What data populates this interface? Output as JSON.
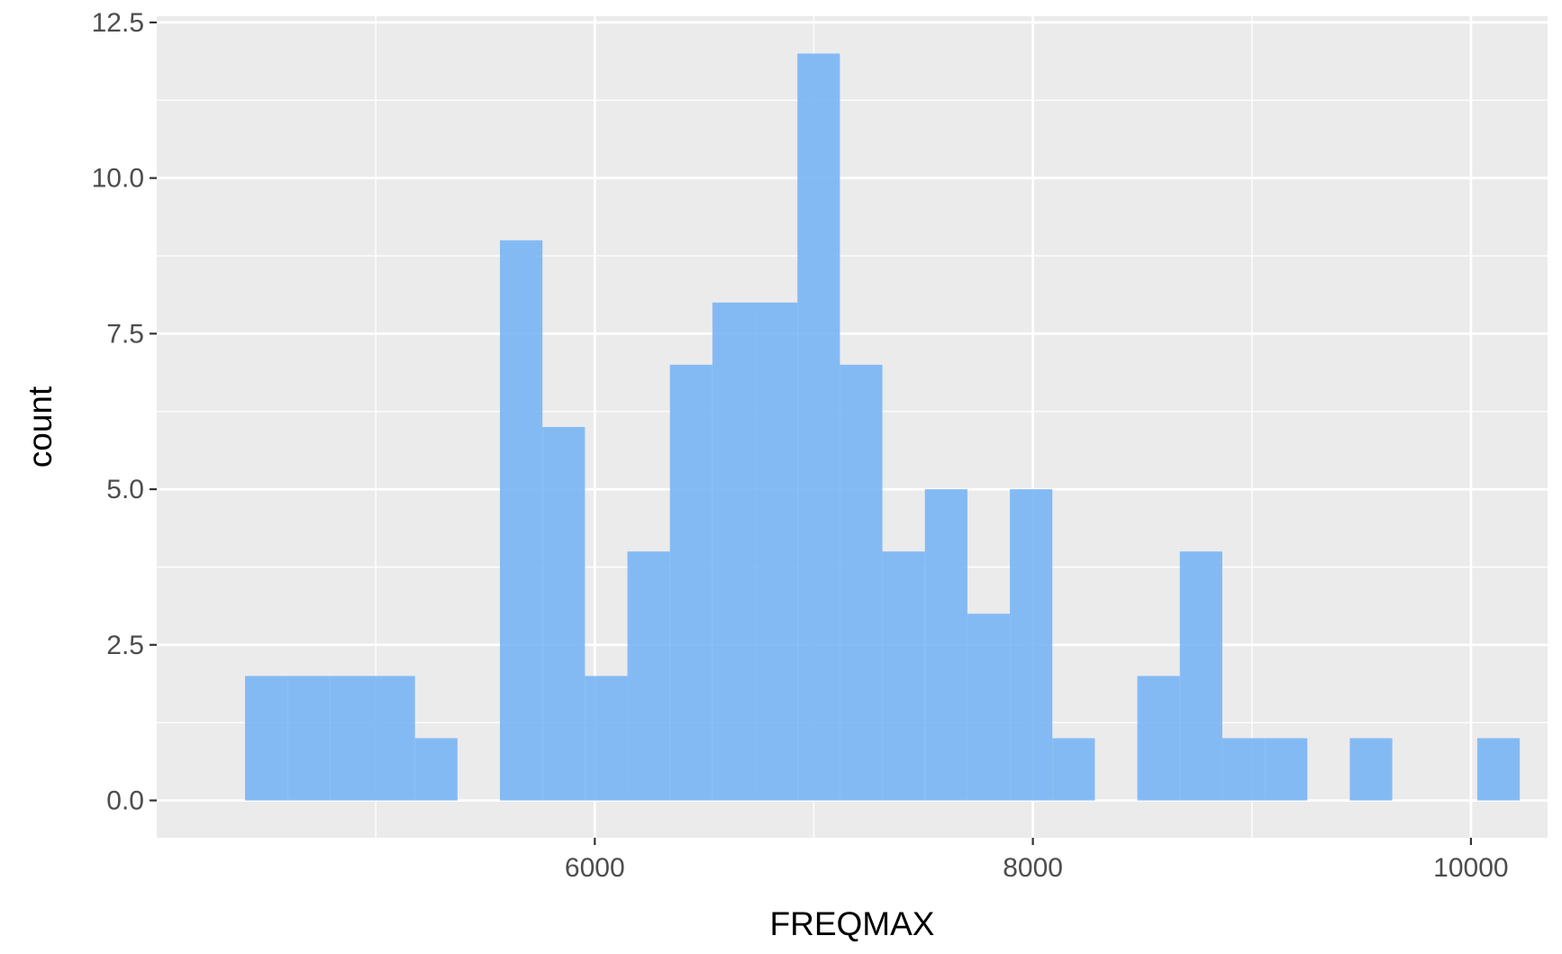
{
  "chart_data": {
    "type": "bar",
    "title": "",
    "xlabel": "FREQMAX",
    "ylabel": "count",
    "x_ticks": [
      6000,
      8000,
      10000
    ],
    "x_tick_labels": [
      "6000",
      "8000",
      "10000"
    ],
    "y_ticks": [
      0,
      2.5,
      5,
      7.5,
      10,
      12.5
    ],
    "y_tick_labels": [
      "0.0",
      "2.5",
      "5.0",
      "7.5",
      "10.0",
      "12.5"
    ],
    "xlim": [
      4000,
      10350
    ],
    "ylim": [
      -0.6,
      12.6
    ],
    "grid": true,
    "bin_width": 194,
    "bin_centers": [
      4500,
      4694,
      4888,
      5082,
      5276,
      5470,
      5664,
      5858,
      6052,
      6246,
      6440,
      6634,
      6828,
      7022,
      7216,
      7410,
      7604,
      7798,
      7992,
      8186,
      8380,
      8574,
      8768,
      8962,
      9156,
      9350,
      9544,
      9738,
      9932,
      10126
    ],
    "values": [
      2,
      2,
      2,
      2,
      1,
      0,
      9,
      6,
      2,
      4,
      7,
      8,
      8,
      12,
      7,
      4,
      5,
      3,
      5,
      1,
      0,
      2,
      4,
      1,
      1,
      0,
      1,
      0,
      0,
      1
    ],
    "colors": {
      "bar": "#75b3f5",
      "panel": "#ebebeb",
      "grid_major": "#ffffff",
      "tick_label": "#4d4d4d"
    }
  }
}
